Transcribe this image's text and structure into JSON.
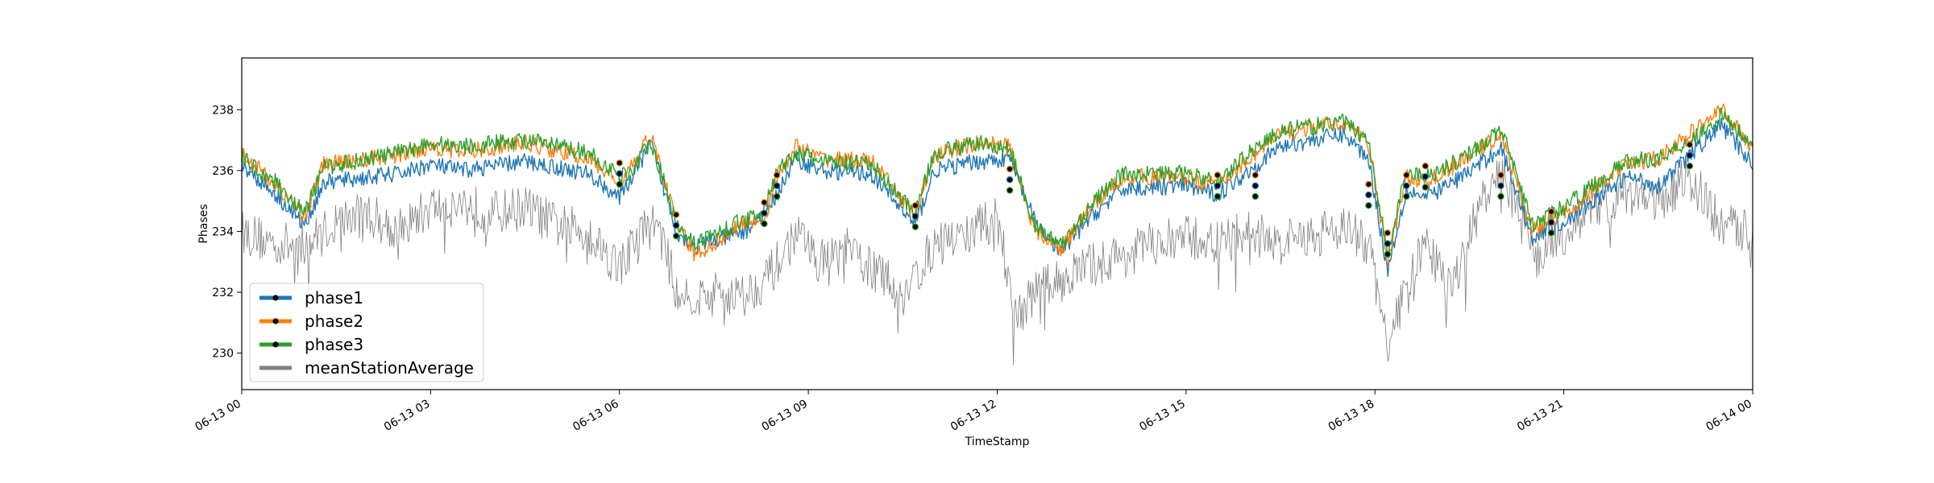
{
  "chart_data": {
    "type": "line",
    "title": "",
    "xlabel": "TimeStamp",
    "ylabel": "Phases",
    "xlim": [
      "06-13 00",
      "06-14 00"
    ],
    "ylim": [
      228.8,
      239.7
    ],
    "grid": false,
    "legend_position": "lower-left",
    "x_tick_labels": [
      "06-13 00",
      "06-13 03",
      "06-13 06",
      "06-13 09",
      "06-13 12",
      "06-13 15",
      "06-13 18",
      "06-13 21",
      "06-14 00"
    ],
    "y_ticks": [
      230,
      232,
      234,
      236,
      238
    ],
    "y_tick_labels": [
      "230",
      "232",
      "234",
      "236",
      "238"
    ],
    "x_unit": "hours since 06-13 00",
    "series": [
      {
        "name": "phase1",
        "color": "#1f77b4",
        "marker_color": "#000000",
        "x": [
          0,
          0.5,
          1,
          1.3,
          2.5,
          3,
          3.5,
          4.5,
          5.5,
          6.0,
          6.2,
          6.5,
          6.9,
          7.2,
          8.0,
          8.3,
          8.5,
          8.8,
          9.2,
          10,
          10.7,
          11,
          11.7,
          12.2,
          12.6,
          13,
          13.5,
          14,
          15,
          15.5,
          16.0,
          16.5,
          17.5,
          17.9,
          18.2,
          18.5,
          18.8,
          19.3,
          19.8,
          20.0,
          20.5,
          21,
          22,
          22.5,
          23,
          23.5,
          24
        ],
        "y": [
          236.2,
          235.3,
          234.2,
          235.6,
          235.9,
          236.2,
          236.0,
          236.3,
          235.9,
          235.1,
          235.8,
          236.9,
          234.0,
          233.5,
          234.0,
          234.6,
          235.2,
          236.4,
          236.0,
          235.9,
          234.2,
          236.0,
          236.3,
          236.4,
          234.3,
          233.3,
          234.5,
          235.4,
          235.5,
          235.2,
          236.0,
          236.8,
          237.2,
          236.4,
          232.7,
          235.4,
          235.1,
          235.7,
          236.4,
          236.8,
          233.8,
          234.3,
          235.8,
          235.5,
          236.5,
          237.5,
          236.2
        ]
      },
      {
        "name": "phase2",
        "color": "#ff7f0e",
        "marker_color": "#000000",
        "x": [
          0,
          0.5,
          1,
          1.3,
          2.5,
          3,
          3.5,
          4.5,
          5.5,
          6.0,
          6.2,
          6.5,
          6.9,
          7.2,
          8.0,
          8.3,
          8.5,
          8.8,
          9.2,
          10,
          10.7,
          11,
          11.7,
          12.2,
          12.6,
          13,
          13.5,
          14,
          15,
          15.5,
          16.0,
          16.5,
          17.5,
          17.9,
          18.2,
          18.5,
          18.8,
          19.3,
          19.8,
          20.0,
          20.5,
          21,
          22,
          22.5,
          23,
          23.5,
          24
        ],
        "y": [
          236.6,
          235.6,
          234.5,
          236.2,
          236.5,
          236.8,
          236.6,
          236.9,
          236.4,
          235.6,
          236.1,
          237.2,
          234.3,
          233.2,
          234.3,
          234.4,
          235.8,
          236.8,
          236.4,
          236.3,
          234.5,
          236.5,
          236.9,
          236.8,
          234.0,
          233.4,
          234.8,
          235.8,
          235.8,
          235.5,
          236.4,
          237.2,
          237.6,
          236.9,
          233.0,
          235.8,
          235.6,
          236.2,
          236.9,
          237.2,
          234.0,
          234.6,
          236.2,
          236.4,
          237.2,
          238.0,
          236.8
        ]
      },
      {
        "name": "phase3",
        "color": "#2ca02c",
        "marker_color": "#000000",
        "x": [
          0,
          0.5,
          1,
          1.3,
          2.5,
          3,
          3.5,
          4.5,
          5.5,
          6.0,
          6.2,
          6.5,
          6.9,
          7.2,
          8.0,
          8.3,
          8.5,
          8.8,
          9.2,
          10,
          10.7,
          11,
          11.7,
          12.2,
          12.6,
          13,
          13.5,
          14,
          15,
          15.5,
          16.0,
          16.5,
          17.5,
          17.9,
          18.2,
          18.5,
          18.8,
          19.3,
          19.8,
          20.0,
          20.5,
          21,
          22,
          22.5,
          23,
          23.5,
          24
        ],
        "y": [
          236.4,
          235.7,
          234.6,
          236.1,
          236.6,
          236.9,
          236.8,
          237.0,
          236.6,
          235.8,
          236.0,
          237.0,
          234.3,
          233.6,
          234.4,
          234.7,
          235.9,
          236.6,
          236.3,
          236.2,
          234.6,
          236.6,
          236.9,
          236.7,
          234.2,
          233.5,
          234.9,
          235.9,
          235.9,
          235.6,
          236.6,
          237.3,
          237.6,
          237.0,
          233.2,
          236.0,
          235.8,
          236.3,
          237.0,
          237.4,
          234.2,
          234.8,
          236.3,
          236.4,
          237.0,
          237.8,
          236.9
        ]
      },
      {
        "name": "meanStationAverage",
        "color": "#808080",
        "x": [
          0,
          0.5,
          1,
          1.5,
          2,
          2.5,
          3,
          3.5,
          4,
          4.5,
          5,
          5.5,
          6.0,
          6.3,
          6.6,
          6.9,
          7.2,
          7.6,
          8.0,
          8.4,
          8.8,
          9.2,
          9.6,
          10,
          10.5,
          11,
          11.5,
          12,
          12.3,
          12.6,
          13,
          13.5,
          14,
          14.5,
          15,
          15.5,
          16,
          16.5,
          17,
          17.5,
          17.9,
          18.2,
          18.5,
          18.8,
          19.2,
          19.6,
          20.0,
          20.3,
          20.6,
          21,
          21.5,
          22,
          22.5,
          23,
          23.5,
          24
        ],
        "y": [
          234.0,
          233.6,
          233.5,
          234.3,
          234.6,
          234.0,
          234.8,
          234.9,
          234.6,
          234.8,
          234.2,
          234.0,
          232.8,
          233.9,
          234.3,
          232.1,
          231.8,
          232.0,
          231.9,
          232.6,
          233.9,
          233.0,
          233.4,
          232.8,
          231.9,
          233.5,
          233.9,
          234.5,
          231.2,
          232.0,
          232.4,
          232.9,
          233.2,
          233.6,
          233.8,
          233.6,
          234.0,
          233.6,
          233.9,
          234.2,
          233.5,
          230.3,
          232.1,
          233.6,
          232.0,
          234.5,
          236.0,
          234.5,
          233.0,
          233.9,
          234.8,
          235.2,
          235.0,
          235.8,
          234.2,
          234.0
        ]
      }
    ],
    "marker_points": {
      "x": [
        6.0,
        6.9,
        8.3,
        8.5,
        10.7,
        12.2,
        15.5,
        16.1,
        17.9,
        18.2,
        18.5,
        18.8,
        20.0,
        20.8,
        23.0
      ],
      "y": [
        235.9,
        234.2,
        234.6,
        235.5,
        234.5,
        235.7,
        235.5,
        235.5,
        235.2,
        233.6,
        235.5,
        235.8,
        235.5,
        234.3,
        236.5
      ]
    }
  }
}
